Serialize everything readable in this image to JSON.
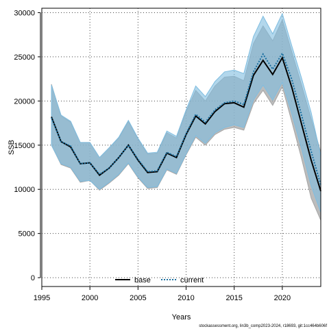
{
  "chart_data": {
    "type": "area",
    "xlabel": "Years",
    "ylabel": "SSB",
    "xlim": [
      1995,
      2024
    ],
    "ylim": [
      -1000,
      30500
    ],
    "x_ticks": [
      1995,
      2000,
      2005,
      2010,
      2015,
      2020
    ],
    "y_ticks": [
      0,
      5000,
      10000,
      15000,
      20000,
      25000,
      30000
    ],
    "grid": true,
    "legend_position": "bottom",
    "colors": {
      "base_line": "#000000",
      "base_band": "#a6a6a6",
      "current_line": "#1a6fa0",
      "current_band": "#7fbde0"
    },
    "series": [
      {
        "name": "base",
        "x": [
          1996,
          1997,
          1998,
          1999,
          2000,
          2001,
          2002,
          2003,
          2004,
          2005,
          2006,
          2007,
          2008,
          2009,
          2010,
          2011,
          2012,
          2013,
          2014,
          2015,
          2016,
          2017,
          2018,
          2019,
          2020,
          2021,
          2022,
          2023,
          2024
        ],
        "values": [
          18200,
          15400,
          14800,
          12900,
          13000,
          11600,
          12400,
          13600,
          15000,
          13300,
          11900,
          12000,
          14100,
          13600,
          16200,
          18300,
          17400,
          18800,
          19700,
          19800,
          19300,
          22900,
          24600,
          23000,
          24900,
          21500,
          17400,
          13300,
          9800
        ],
        "lower": [
          15000,
          12800,
          12400,
          10800,
          11000,
          9900,
          10700,
          11600,
          12900,
          11300,
          10100,
          10200,
          12200,
          11700,
          13900,
          15900,
          15000,
          16200,
          16800,
          17000,
          16700,
          19700,
          21200,
          19500,
          21600,
          17600,
          13500,
          9000,
          6500
        ],
        "upper": [
          21900,
          18300,
          17600,
          15300,
          15300,
          13600,
          14700,
          15800,
          17700,
          15700,
          14000,
          14100,
          16400,
          15800,
          18800,
          21200,
          20000,
          21700,
          22700,
          22800,
          22300,
          26500,
          28500,
          26800,
          29200,
          25500,
          21800,
          18000,
          14200
        ]
      },
      {
        "name": "current",
        "x": [
          1996,
          1997,
          1998,
          1999,
          2000,
          2001,
          2002,
          2003,
          2004,
          2005,
          2006,
          2007,
          2008,
          2009,
          2010,
          2011,
          2012,
          2013,
          2014,
          2015,
          2016,
          2017,
          2018,
          2019,
          2020,
          2021,
          2022,
          2023,
          2024
        ],
        "values": [
          18100,
          15400,
          14900,
          12900,
          13000,
          11700,
          12400,
          13600,
          15000,
          13400,
          12000,
          12100,
          14200,
          13700,
          16300,
          18500,
          17600,
          19000,
          19800,
          20000,
          19600,
          23300,
          25300,
          23600,
          25400,
          22400,
          18400,
          14300,
          10500
        ],
        "lower": [
          15000,
          12900,
          12500,
          10900,
          11000,
          10000,
          10800,
          11700,
          13000,
          11400,
          10200,
          10300,
          12300,
          11800,
          14000,
          16100,
          15200,
          16400,
          17000,
          17300,
          17000,
          20100,
          21800,
          20100,
          22100,
          18500,
          14600,
          10400,
          7400
        ],
        "upper": [
          21800,
          18400,
          17700,
          15300,
          15300,
          13600,
          14700,
          15900,
          17800,
          15800,
          14100,
          14200,
          16600,
          16000,
          19000,
          21700,
          20500,
          22200,
          23300,
          23500,
          23100,
          27300,
          29600,
          27600,
          29900,
          26200,
          22600,
          18700,
          13800
        ]
      }
    ],
    "footer_text": "stockassessment.org, lin3b_comp2023-2024, r18693, git:1cc464b606f"
  }
}
